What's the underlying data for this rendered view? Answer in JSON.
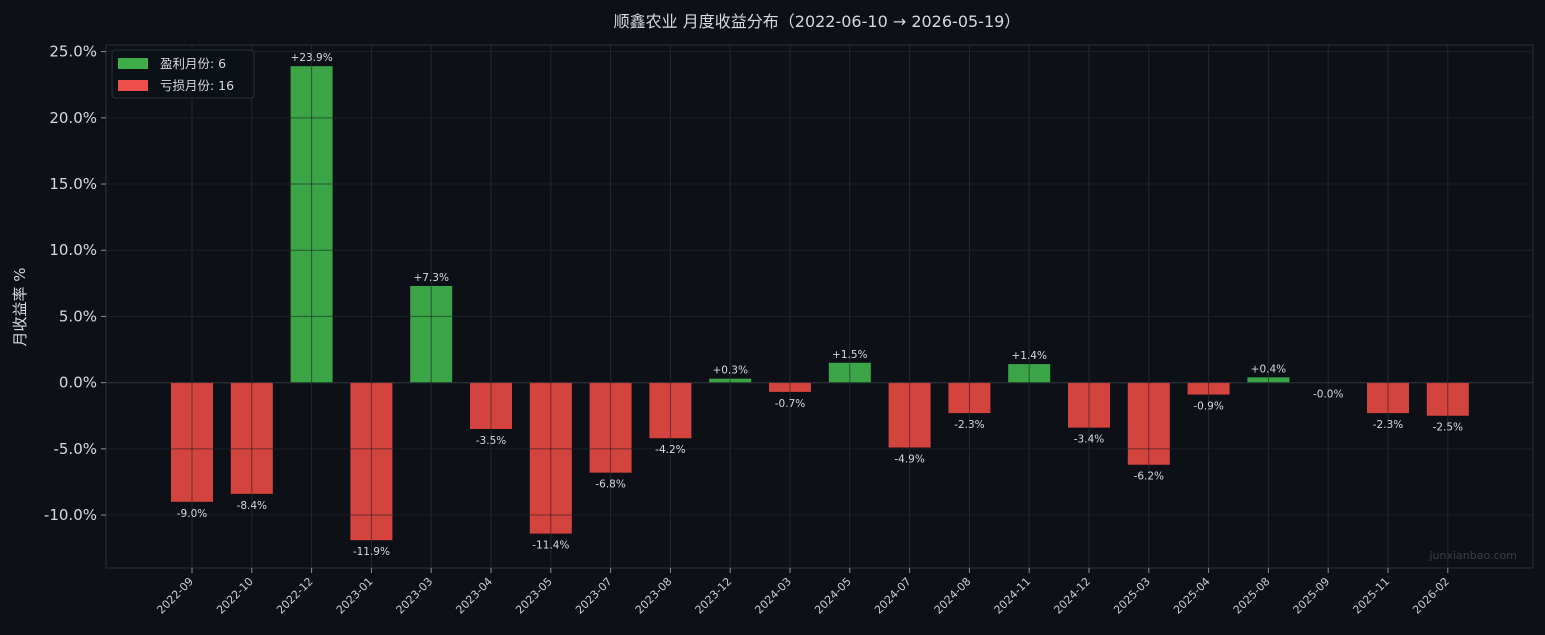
{
  "chart_data": {
    "type": "bar",
    "title": "顺鑫农业 月度收益分布（2022-06-10 → 2026-05-19）",
    "ylabel": "月收益率 %",
    "xlabel": "",
    "ylim": [
      -14,
      25.5
    ],
    "yticks": [
      -10,
      -5,
      0,
      5,
      10,
      15,
      20,
      25
    ],
    "ytick_labels": [
      "-10.0%",
      "-5.0%",
      "0.0%",
      "5.0%",
      "10.0%",
      "15.0%",
      "20.0%",
      "25.0%"
    ],
    "grid": true,
    "legend_position": "top-left",
    "legend": [
      {
        "label": "盈利月份: 6",
        "color": "#3fae4a"
      },
      {
        "label": "亏损月份: 16",
        "color": "#ef4f4a"
      }
    ],
    "categories": [
      "2022-09",
      "2022-10",
      "2022-12",
      "2023-01",
      "2023-03",
      "2023-04",
      "2023-05",
      "2023-07",
      "2023-08",
      "2023-12",
      "2024-03",
      "2024-05",
      "2024-07",
      "2024-08",
      "2024-11",
      "2024-12",
      "2025-03",
      "2025-04",
      "2025-08",
      "2025-09",
      "2025-11",
      "2026-02"
    ],
    "values": [
      -9.0,
      -8.4,
      23.9,
      -11.9,
      7.3,
      -3.5,
      -11.4,
      -6.8,
      -4.2,
      0.3,
      -0.7,
      1.5,
      -4.9,
      -2.3,
      1.4,
      -3.4,
      -6.2,
      -0.9,
      0.4,
      -0.0,
      -2.3,
      -2.5
    ],
    "data_labels": [
      "-9.0%",
      "-8.4%",
      "+23.9%",
      "-11.9%",
      "+7.3%",
      "-3.5%",
      "-11.4%",
      "-6.8%",
      "-4.2%",
      "+0.3%",
      "-0.7%",
      "+1.5%",
      "-4.9%",
      "-2.3%",
      "+1.4%",
      "-3.4%",
      "-6.2%",
      "-0.9%",
      "+0.4%",
      "-0.0%",
      "-2.3%",
      "-2.5%"
    ],
    "colors": {
      "positive": "#3aa447",
      "negative": "#d4443f",
      "background": "#0d1017",
      "grid": "#232832"
    },
    "watermark": "junxianbao.com"
  }
}
